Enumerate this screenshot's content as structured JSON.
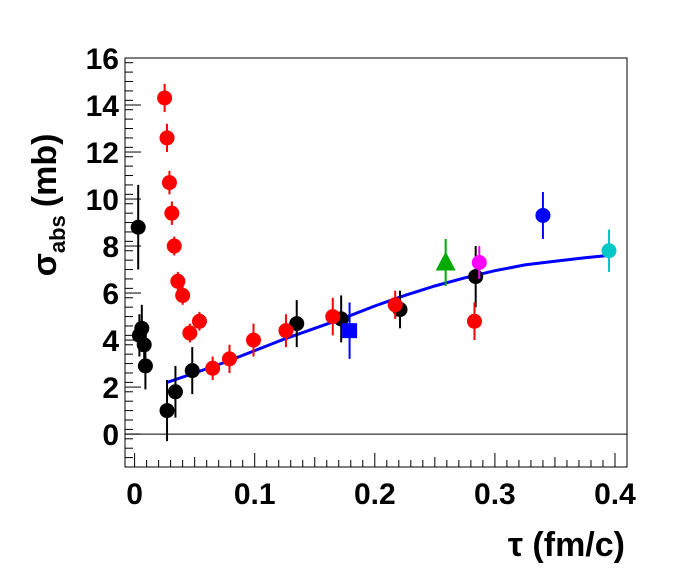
{
  "chart_data": {
    "type": "scatter",
    "title": "",
    "xlabel": "τ (fm/c)",
    "ylabel_symbol": "σ",
    "ylabel_sub": "abs",
    "ylabel_unit": "(mb)",
    "xlim": [
      -0.008,
      0.41
    ],
    "ylim": [
      -1.4,
      16
    ],
    "x_ticks": [
      0,
      0.1,
      0.2,
      0.3,
      0.4
    ],
    "x_tick_labels": [
      "0",
      "0.1",
      "0.2",
      "0.3",
      "0.4"
    ],
    "y_ticks": [
      0,
      2,
      4,
      6,
      8,
      10,
      12,
      14,
      16
    ],
    "y_tick_labels": [
      "0",
      "2",
      "4",
      "6",
      "8",
      "10",
      "12",
      "14",
      "16"
    ],
    "zero_line": 0,
    "grid": false,
    "series": [
      {
        "name": "black",
        "color": "#000000",
        "marker": "circle",
        "points": [
          {
            "x": 0.003,
            "y": 8.8,
            "err": 1.8
          },
          {
            "x": 0.004,
            "y": 4.2,
            "err": 0.9
          },
          {
            "x": 0.006,
            "y": 4.5,
            "err": 1.0
          },
          {
            "x": 0.008,
            "y": 3.8,
            "err": 0.9
          },
          {
            "x": 0.009,
            "y": 2.9,
            "err": 1.0
          },
          {
            "x": 0.027,
            "y": 1.0,
            "err": 1.3
          },
          {
            "x": 0.034,
            "y": 1.8,
            "err": 1.1
          },
          {
            "x": 0.048,
            "y": 2.7,
            "err": 1.0
          },
          {
            "x": 0.135,
            "y": 4.7,
            "err": 1.0
          },
          {
            "x": 0.172,
            "y": 4.9,
            "err": 1.0
          },
          {
            "x": 0.221,
            "y": 5.3,
            "err": 0.8
          },
          {
            "x": 0.284,
            "y": 6.7,
            "err": 1.3
          }
        ]
      },
      {
        "name": "red",
        "color": "#ff0000",
        "marker": "circle",
        "points": [
          {
            "x": 0.025,
            "y": 14.3,
            "err": 0.6
          },
          {
            "x": 0.027,
            "y": 12.6,
            "err": 0.6
          },
          {
            "x": 0.029,
            "y": 10.7,
            "err": 0.5
          },
          {
            "x": 0.031,
            "y": 9.4,
            "err": 0.5
          },
          {
            "x": 0.033,
            "y": 8.0,
            "err": 0.4
          },
          {
            "x": 0.036,
            "y": 6.5,
            "err": 0.4
          },
          {
            "x": 0.04,
            "y": 5.9,
            "err": 0.4
          },
          {
            "x": 0.046,
            "y": 4.3,
            "err": 0.4
          },
          {
            "x": 0.054,
            "y": 4.8,
            "err": 0.4
          },
          {
            "x": 0.065,
            "y": 2.8,
            "err": 0.5
          },
          {
            "x": 0.079,
            "y": 3.2,
            "err": 0.6
          },
          {
            "x": 0.099,
            "y": 4.0,
            "err": 0.7
          },
          {
            "x": 0.126,
            "y": 4.4,
            "err": 0.7
          },
          {
            "x": 0.165,
            "y": 5.0,
            "err": 0.8
          },
          {
            "x": 0.217,
            "y": 5.5,
            "err": 0.6
          },
          {
            "x": 0.283,
            "y": 4.8,
            "err": 0.8
          }
        ]
      },
      {
        "name": "blue-square",
        "color": "#0000ff",
        "marker": "square",
        "points": [
          {
            "x": 0.179,
            "y": 4.4,
            "err": 1.2
          }
        ]
      },
      {
        "name": "green-triangle",
        "color": "#00aa00",
        "marker": "triangle",
        "points": [
          {
            "x": 0.259,
            "y": 7.3,
            "err": 1.0
          }
        ]
      },
      {
        "name": "magenta",
        "color": "#ff00ff",
        "marker": "circle",
        "points": [
          {
            "x": 0.287,
            "y": 7.3,
            "err": 0.7
          }
        ]
      },
      {
        "name": "blue",
        "color": "#0000ff",
        "marker": "circle",
        "points": [
          {
            "x": 0.34,
            "y": 9.3,
            "err": 1.0
          }
        ]
      },
      {
        "name": "cyan",
        "color": "#00c8c8",
        "marker": "circle",
        "points": [
          {
            "x": 0.395,
            "y": 7.8,
            "err": 0.9
          }
        ]
      }
    ],
    "fit_curve": {
      "color": "#0000ff",
      "x": [
        0.027,
        0.05,
        0.075,
        0.1,
        0.125,
        0.15,
        0.175,
        0.2,
        0.225,
        0.25,
        0.275,
        0.3,
        0.325,
        0.35,
        0.375,
        0.395
      ],
      "y": [
        2.2,
        2.6,
        3.05,
        3.55,
        4.05,
        4.5,
        4.95,
        5.45,
        5.9,
        6.3,
        6.65,
        6.95,
        7.2,
        7.35,
        7.5,
        7.6
      ]
    }
  }
}
